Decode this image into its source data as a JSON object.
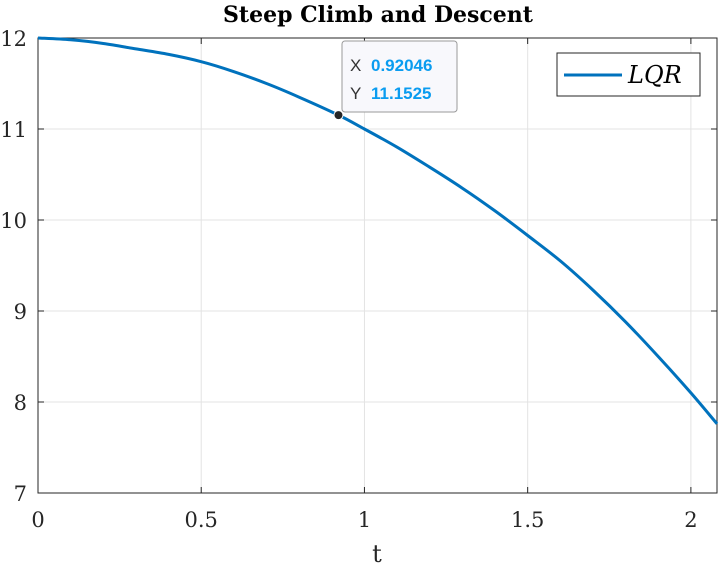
{
  "chart_data": {
    "type": "line",
    "title": "Steep Climb and Descent",
    "xlabel": "t",
    "ylabel": "",
    "xlim": [
      0,
      2.08
    ],
    "ylim": [
      7,
      12
    ],
    "xticks": [
      "0",
      "0.5",
      "1",
      "1.5",
      "2"
    ],
    "yticks": [
      "7",
      "8",
      "9",
      "10",
      "11",
      "12"
    ],
    "grid": true,
    "legend_placement": "top-right",
    "series": [
      {
        "name": "LQR",
        "color": "#0072BD",
        "x": [
          0,
          0.1,
          0.2,
          0.3,
          0.4,
          0.5,
          0.6,
          0.7,
          0.8,
          0.92046,
          1.0,
          1.1,
          1.2,
          1.3,
          1.4,
          1.5,
          1.6,
          1.7,
          1.8,
          1.9,
          2.0,
          2.08
        ],
        "y": [
          12.0,
          11.98,
          11.94,
          11.88,
          11.82,
          11.74,
          11.63,
          11.5,
          11.35,
          11.1525,
          11.0,
          10.8,
          10.58,
          10.35,
          10.1,
          9.83,
          9.55,
          9.23,
          8.88,
          8.5,
          8.1,
          7.76
        ]
      }
    ],
    "datatip": {
      "x_label": "X",
      "x_value": "0.92046",
      "y_label": "Y",
      "y_value": "11.1525",
      "x": 0.92046,
      "y": 11.1525
    }
  }
}
